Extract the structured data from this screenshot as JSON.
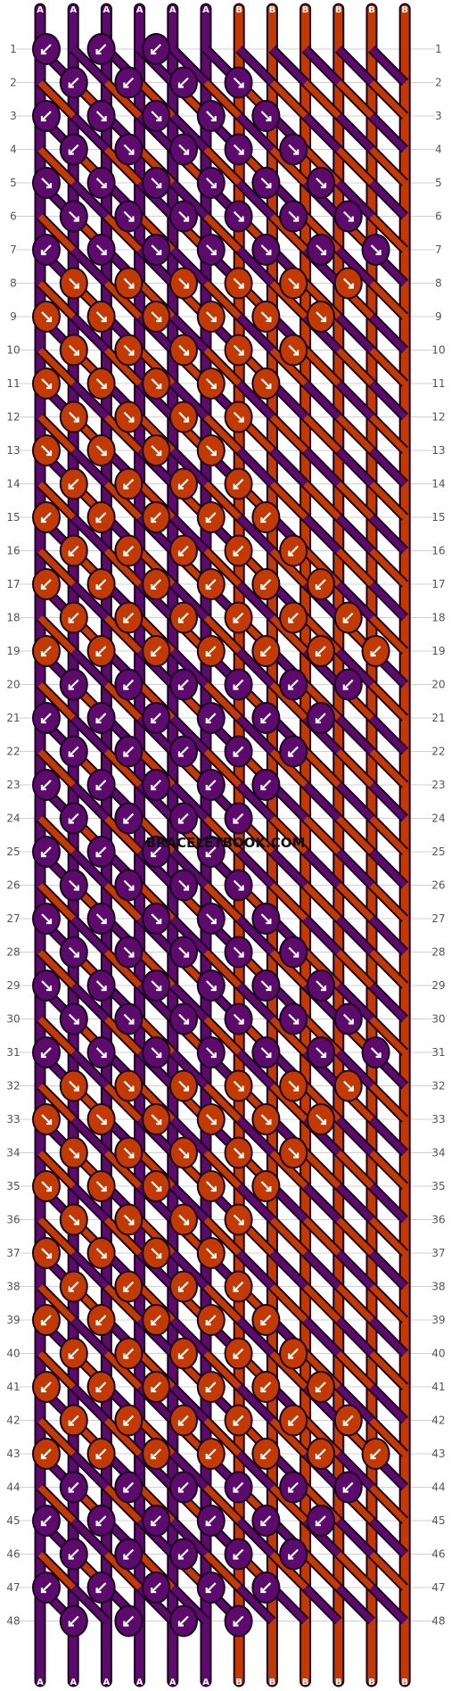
{
  "site": {
    "watermark": "BRACELETBOOK.COM"
  },
  "colors": {
    "A": "#5c0a6b",
    "B": "#c23a02",
    "outline": "#1a001f",
    "grid": "#d0d0d0",
    "arrow": "#ffffff"
  },
  "strands": {
    "top": [
      "A",
      "A",
      "A",
      "A",
      "A",
      "A",
      "B",
      "B",
      "B",
      "B",
      "B",
      "B"
    ],
    "bottom": [
      "A",
      "A",
      "A",
      "A",
      "A",
      "A",
      "B",
      "B",
      "B",
      "B",
      "B",
      "B"
    ]
  },
  "rows": [
    "1",
    "2",
    "3",
    "4",
    "5",
    "6",
    "7",
    "8",
    "9",
    "10",
    "11",
    "12",
    "13",
    "14",
    "15",
    "16",
    "17",
    "18",
    "19",
    "20",
    "21",
    "22",
    "23",
    "24",
    "25",
    "26",
    "27",
    "28",
    "29",
    "30",
    "31",
    "32",
    "33",
    "34",
    "35",
    "36",
    "37",
    "38",
    "39",
    "40",
    "41",
    "42",
    "43",
    "44",
    "45",
    "46",
    "47",
    "48"
  ],
  "knots": [
    {
      "row": 1,
      "items": [
        [
          "A",
          "bl"
        ],
        [
          "A",
          "bl"
        ],
        [
          "A",
          "bl"
        ]
      ]
    },
    {
      "row": 2,
      "items": [
        [
          "A",
          "bl"
        ],
        [
          "A",
          "bl"
        ],
        [
          "A",
          "bl"
        ],
        [
          "A",
          "br"
        ]
      ]
    },
    {
      "row": 3,
      "items": [
        [
          "A",
          "bl"
        ],
        [
          "A",
          "br"
        ],
        [
          "A",
          "br"
        ],
        [
          "A",
          "br"
        ],
        [
          "A",
          "br"
        ]
      ]
    },
    {
      "row": 4,
      "items": [
        [
          "A",
          "bl"
        ],
        [
          "A",
          "br"
        ],
        [
          "A",
          "br"
        ],
        [
          "A",
          "br"
        ],
        [
          "A",
          "br"
        ]
      ]
    },
    {
      "row": 5,
      "items": [
        [
          "A",
          "br"
        ],
        [
          "A",
          "br"
        ],
        [
          "A",
          "br"
        ],
        [
          "A",
          "br"
        ],
        [
          "A",
          "br"
        ],
        [
          "A",
          "br"
        ]
      ]
    },
    {
      "row": 6,
      "items": [
        [
          "A",
          "br"
        ],
        [
          "A",
          "br"
        ],
        [
          "A",
          "br"
        ],
        [
          "A",
          "br"
        ],
        [
          "A",
          "br"
        ],
        [
          "A",
          "br"
        ]
      ]
    },
    {
      "row": 7,
      "items": [
        [
          "A",
          "bl"
        ],
        [
          "A",
          "br"
        ],
        [
          "A",
          "br"
        ],
        [
          "A",
          "br"
        ],
        [
          "A",
          "br"
        ],
        [
          "A",
          "br"
        ],
        [
          "A",
          "br"
        ]
      ]
    },
    {
      "row": 8,
      "items": [
        [
          "B",
          "br"
        ],
        [
          "B",
          "br"
        ],
        [
          "B",
          "br"
        ],
        [
          "B",
          "br"
        ],
        [
          "B",
          "br"
        ],
        [
          "B",
          "br"
        ]
      ]
    },
    {
      "row": 9,
      "items": [
        [
          "B",
          "br"
        ],
        [
          "B",
          "br"
        ],
        [
          "B",
          "br"
        ],
        [
          "B",
          "br"
        ],
        [
          "B",
          "br"
        ],
        [
          "B",
          "br"
        ]
      ]
    },
    {
      "row": 10,
      "items": [
        [
          "B",
          "br"
        ],
        [
          "B",
          "br"
        ],
        [
          "B",
          "br"
        ],
        [
          "B",
          "br"
        ],
        [
          "B",
          "br"
        ]
      ]
    },
    {
      "row": 11,
      "items": [
        [
          "B",
          "br"
        ],
        [
          "B",
          "br"
        ],
        [
          "B",
          "br"
        ],
        [
          "B",
          "br"
        ],
        [
          "B",
          "br"
        ]
      ]
    },
    {
      "row": 12,
      "items": [
        [
          "B",
          "br"
        ],
        [
          "B",
          "br"
        ],
        [
          "B",
          "br"
        ],
        [
          "B",
          "br"
        ]
      ]
    },
    {
      "row": 13,
      "items": [
        [
          "B",
          "br"
        ],
        [
          "B",
          "br"
        ],
        [
          "B",
          "br"
        ],
        [
          "B",
          "br"
        ]
      ]
    },
    {
      "row": 14,
      "items": [
        [
          "B",
          "bl"
        ],
        [
          "B",
          "bl"
        ],
        [
          "B",
          "bl"
        ],
        [
          "B",
          "bl"
        ]
      ]
    },
    {
      "row": 15,
      "items": [
        [
          "B",
          "bl"
        ],
        [
          "B",
          "bl"
        ],
        [
          "B",
          "bl"
        ],
        [
          "B",
          "bl"
        ],
        [
          "B",
          "bl"
        ]
      ]
    },
    {
      "row": 16,
      "items": [
        [
          "B",
          "bl"
        ],
        [
          "B",
          "bl"
        ],
        [
          "B",
          "bl"
        ],
        [
          "B",
          "bl"
        ],
        [
          "B",
          "bl"
        ]
      ]
    },
    {
      "row": 17,
      "items": [
        [
          "B",
          "bl"
        ],
        [
          "B",
          "bl"
        ],
        [
          "B",
          "bl"
        ],
        [
          "B",
          "bl"
        ],
        [
          "B",
          "bl"
        ],
        [
          "B",
          "bl"
        ]
      ]
    },
    {
      "row": 18,
      "items": [
        [
          "B",
          "bl"
        ],
        [
          "B",
          "bl"
        ],
        [
          "B",
          "bl"
        ],
        [
          "B",
          "bl"
        ],
        [
          "B",
          "bl"
        ],
        [
          "B",
          "bl"
        ]
      ]
    },
    {
      "row": 19,
      "items": [
        [
          "B",
          "bl"
        ],
        [
          "B",
          "bl"
        ],
        [
          "B",
          "bl"
        ],
        [
          "B",
          "bl"
        ],
        [
          "B",
          "bl"
        ],
        [
          "B",
          "bl"
        ],
        [
          "B",
          "bl"
        ]
      ]
    },
    {
      "row": 20,
      "items": [
        [
          "A",
          "bl"
        ],
        [
          "A",
          "bl"
        ],
        [
          "A",
          "bl"
        ],
        [
          "A",
          "bl"
        ],
        [
          "A",
          "bl"
        ],
        [
          "A",
          "bl"
        ]
      ]
    },
    {
      "row": 21,
      "items": [
        [
          "A",
          "bl"
        ],
        [
          "A",
          "bl"
        ],
        [
          "A",
          "bl"
        ],
        [
          "A",
          "bl"
        ],
        [
          "A",
          "bl"
        ],
        [
          "A",
          "bl"
        ]
      ]
    },
    {
      "row": 22,
      "items": [
        [
          "A",
          "bl"
        ],
        [
          "A",
          "bl"
        ],
        [
          "A",
          "bl"
        ],
        [
          "A",
          "bl"
        ],
        [
          "A",
          "bl"
        ]
      ]
    },
    {
      "row": 23,
      "items": [
        [
          "A",
          "bl"
        ],
        [
          "A",
          "bl"
        ],
        [
          "A",
          "bl"
        ],
        [
          "A",
          "bl"
        ],
        [
          "A",
          "bl"
        ]
      ]
    },
    {
      "row": 24,
      "items": [
        [
          "A",
          "bl"
        ],
        [
          "A",
          "bl"
        ],
        [
          "A",
          "bl"
        ],
        [
          "A",
          "bl"
        ]
      ]
    },
    {
      "row": 25,
      "items": [
        [
          "A",
          "bl"
        ],
        [
          "A",
          "bl"
        ],
        [
          "A",
          "bl"
        ],
        [
          "A",
          "bl"
        ]
      ]
    },
    {
      "row": 26,
      "items": [
        [
          "A",
          "br"
        ],
        [
          "A",
          "br"
        ],
        [
          "A",
          "br"
        ],
        [
          "A",
          "br"
        ]
      ]
    },
    {
      "row": 27,
      "items": [
        [
          "A",
          "br"
        ],
        [
          "A",
          "br"
        ],
        [
          "A",
          "br"
        ],
        [
          "A",
          "br"
        ],
        [
          "A",
          "br"
        ]
      ]
    },
    {
      "row": 28,
      "items": [
        [
          "A",
          "br"
        ],
        [
          "A",
          "br"
        ],
        [
          "A",
          "br"
        ],
        [
          "A",
          "br"
        ],
        [
          "A",
          "br"
        ]
      ]
    },
    {
      "row": 29,
      "items": [
        [
          "A",
          "br"
        ],
        [
          "A",
          "br"
        ],
        [
          "A",
          "br"
        ],
        [
          "A",
          "br"
        ],
        [
          "A",
          "br"
        ],
        [
          "A",
          "br"
        ]
      ]
    },
    {
      "row": 30,
      "items": [
        [
          "A",
          "br"
        ],
        [
          "A",
          "br"
        ],
        [
          "A",
          "br"
        ],
        [
          "A",
          "br"
        ],
        [
          "A",
          "br"
        ],
        [
          "A",
          "br"
        ]
      ]
    },
    {
      "row": 31,
      "items": [
        [
          "A",
          "bl"
        ],
        [
          "A",
          "br"
        ],
        [
          "A",
          "br"
        ],
        [
          "A",
          "br"
        ],
        [
          "A",
          "br"
        ],
        [
          "A",
          "br"
        ],
        [
          "A",
          "br"
        ]
      ]
    },
    {
      "row": 32,
      "items": [
        [
          "B",
          "br"
        ],
        [
          "B",
          "br"
        ],
        [
          "B",
          "br"
        ],
        [
          "B",
          "br"
        ],
        [
          "B",
          "br"
        ],
        [
          "B",
          "br"
        ]
      ]
    },
    {
      "row": 33,
      "items": [
        [
          "B",
          "br"
        ],
        [
          "B",
          "br"
        ],
        [
          "B",
          "br"
        ],
        [
          "B",
          "br"
        ],
        [
          "B",
          "br"
        ],
        [
          "B",
          "br"
        ]
      ]
    },
    {
      "row": 34,
      "items": [
        [
          "B",
          "br"
        ],
        [
          "B",
          "br"
        ],
        [
          "B",
          "br"
        ],
        [
          "B",
          "br"
        ],
        [
          "B",
          "br"
        ]
      ]
    },
    {
      "row": 35,
      "items": [
        [
          "B",
          "br"
        ],
        [
          "B",
          "br"
        ],
        [
          "B",
          "br"
        ],
        [
          "B",
          "br"
        ],
        [
          "B",
          "br"
        ]
      ]
    },
    {
      "row": 36,
      "items": [
        [
          "B",
          "br"
        ],
        [
          "B",
          "br"
        ],
        [
          "B",
          "br"
        ],
        [
          "B",
          "br"
        ]
      ]
    },
    {
      "row": 37,
      "items": [
        [
          "B",
          "br"
        ],
        [
          "B",
          "br"
        ],
        [
          "B",
          "br"
        ],
        [
          "B",
          "br"
        ]
      ]
    },
    {
      "row": 38,
      "items": [
        [
          "B",
          "bl"
        ],
        [
          "B",
          "bl"
        ],
        [
          "B",
          "bl"
        ],
        [
          "B",
          "bl"
        ]
      ]
    },
    {
      "row": 39,
      "items": [
        [
          "B",
          "bl"
        ],
        [
          "B",
          "bl"
        ],
        [
          "B",
          "bl"
        ],
        [
          "B",
          "bl"
        ],
        [
          "B",
          "bl"
        ]
      ]
    },
    {
      "row": 40,
      "items": [
        [
          "B",
          "bl"
        ],
        [
          "B",
          "bl"
        ],
        [
          "B",
          "bl"
        ],
        [
          "B",
          "bl"
        ],
        [
          "B",
          "bl"
        ]
      ]
    },
    {
      "row": 41,
      "items": [
        [
          "B",
          "bl"
        ],
        [
          "B",
          "bl"
        ],
        [
          "B",
          "bl"
        ],
        [
          "B",
          "bl"
        ],
        [
          "B",
          "bl"
        ],
        [
          "B",
          "bl"
        ]
      ]
    },
    {
      "row": 42,
      "items": [
        [
          "B",
          "bl"
        ],
        [
          "B",
          "bl"
        ],
        [
          "B",
          "bl"
        ],
        [
          "B",
          "bl"
        ],
        [
          "B",
          "bl"
        ],
        [
          "B",
          "bl"
        ]
      ]
    },
    {
      "row": 43,
      "items": [
        [
          "B",
          "bl"
        ],
        [
          "B",
          "bl"
        ],
        [
          "B",
          "bl"
        ],
        [
          "B",
          "bl"
        ],
        [
          "B",
          "bl"
        ],
        [
          "B",
          "bl"
        ],
        [
          "B",
          "bl"
        ]
      ]
    },
    {
      "row": 44,
      "items": [
        [
          "A",
          "bl"
        ],
        [
          "A",
          "bl"
        ],
        [
          "A",
          "bl"
        ],
        [
          "A",
          "bl"
        ],
        [
          "A",
          "bl"
        ],
        [
          "A",
          "bl"
        ]
      ]
    },
    {
      "row": 45,
      "items": [
        [
          "A",
          "bl"
        ],
        [
          "A",
          "bl"
        ],
        [
          "A",
          "bl"
        ],
        [
          "A",
          "bl"
        ],
        [
          "A",
          "bl"
        ],
        [
          "A",
          "bl"
        ]
      ]
    },
    {
      "row": 46,
      "items": [
        [
          "A",
          "bl"
        ],
        [
          "A",
          "bl"
        ],
        [
          "A",
          "bl"
        ],
        [
          "A",
          "bl"
        ],
        [
          "A",
          "bl"
        ]
      ]
    },
    {
      "row": 47,
      "items": [
        [
          "A",
          "bl"
        ],
        [
          "A",
          "bl"
        ],
        [
          "A",
          "bl"
        ],
        [
          "A",
          "bl"
        ],
        [
          "A",
          "bl"
        ]
      ]
    },
    {
      "row": 48,
      "items": [
        [
          "A",
          "bl"
        ],
        [
          "A",
          "bl"
        ],
        [
          "A",
          "bl"
        ],
        [
          "A",
          "bl"
        ]
      ]
    }
  ]
}
